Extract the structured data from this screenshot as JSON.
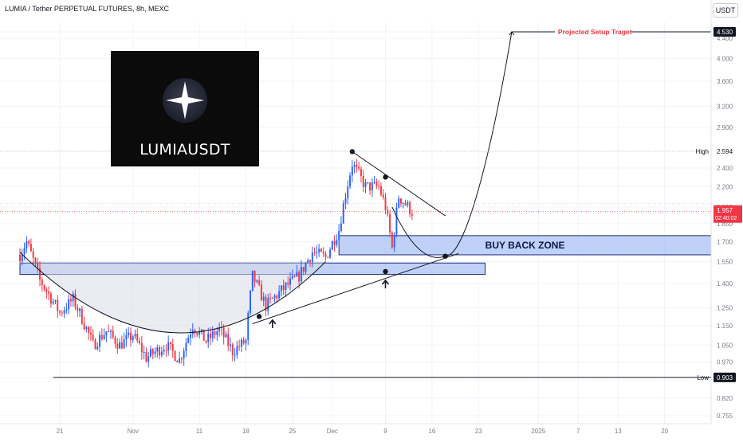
{
  "header": {
    "symbol_title": "LUMIA / Tether PERPETUAL FUTURES, 8h, MEXC",
    "currency": "USDT"
  },
  "logo": {
    "text": "LUMIAUSDT"
  },
  "colors": {
    "up": "#2962ff",
    "down": "#f23645",
    "zone_fill": "#a9c1f4",
    "zone_stroke": "#1e2a78",
    "target_text": "#f23645",
    "grid": "#f0f3fa",
    "axis_text": "#787b86"
  },
  "chart_data": {
    "type": "candlestick",
    "title": "LUMIA / Tether PERPETUAL FUTURES, 8h, MEXC",
    "y_axis": {
      "scale": "log",
      "range": [
        0.74,
        5.2
      ],
      "ticks": [
        0.755,
        0.82,
        0.902,
        0.97,
        1.05,
        1.15,
        1.25,
        1.4,
        1.55,
        1.7,
        1.85,
        2.0,
        2.2,
        2.4,
        2.594,
        2.9,
        3.2,
        3.6,
        4.0,
        4.4,
        4.53
      ]
    },
    "x_axis": {
      "range": [
        "2024-10-12",
        "2025-01-27"
      ],
      "ticks": [
        {
          "date": "2024-10-21",
          "label": "21"
        },
        {
          "date": "2024-11-01",
          "label": "Nov"
        },
        {
          "date": "2024-11-11",
          "label": "11"
        },
        {
          "date": "2024-11-18",
          "label": "18"
        },
        {
          "date": "2024-11-25",
          "label": "25"
        },
        {
          "date": "2024-12-01",
          "label": "Dec"
        },
        {
          "date": "2024-12-09",
          "label": "9"
        },
        {
          "date": "2024-12-16",
          "label": "16"
        },
        {
          "date": "2024-12-23",
          "label": "23"
        },
        {
          "date": "2025-01-01",
          "label": "2025"
        },
        {
          "date": "2025-01-07",
          "label": "7"
        },
        {
          "date": "2025-01-13",
          "label": "13"
        },
        {
          "date": "2025-01-20",
          "label": "20"
        }
      ]
    },
    "price_labels": [
      {
        "label": "High",
        "value": 2.594,
        "text": "2.594"
      },
      {
        "label": "Low",
        "value": 0.902,
        "text": "0.902"
      },
      {
        "label": "",
        "value": 0.903,
        "text": "0.903",
        "style": "dark"
      },
      {
        "label": "",
        "value": 4.53,
        "text": "4.530",
        "style": "dark"
      },
      {
        "label": "",
        "value": 1.957,
        "text": "1.957",
        "style": "red",
        "sub": "02:40:02"
      }
    ],
    "series": [
      {
        "type": "candles",
        "waypoints": [
          [
            "2024-10-15",
            1.6
          ],
          [
            "2024-10-16",
            1.7
          ],
          [
            "2024-10-18",
            1.42
          ],
          [
            "2024-10-21",
            1.22
          ],
          [
            "2024-10-23",
            1.3
          ],
          [
            "2024-10-26",
            1.05
          ],
          [
            "2024-10-28",
            1.12
          ],
          [
            "2024-10-30",
            1.05
          ],
          [
            "2024-11-01",
            1.1
          ],
          [
            "2024-11-03",
            0.99
          ],
          [
            "2024-11-06",
            1.05
          ],
          [
            "2024-11-08",
            0.98
          ],
          [
            "2024-11-10",
            1.15
          ],
          [
            "2024-11-12",
            1.07
          ],
          [
            "2024-11-14",
            1.13
          ],
          [
            "2024-11-16",
            1.02
          ],
          [
            "2024-11-18",
            1.07
          ],
          [
            "2024-11-19",
            1.45
          ],
          [
            "2024-11-21",
            1.26
          ],
          [
            "2024-11-24",
            1.38
          ],
          [
            "2024-11-26",
            1.45
          ],
          [
            "2024-11-28",
            1.62
          ],
          [
            "2024-11-30",
            1.58
          ],
          [
            "2024-12-02",
            1.8
          ],
          [
            "2024-12-04",
            2.45
          ],
          [
            "2024-12-06",
            2.2
          ],
          [
            "2024-12-08",
            2.2
          ],
          [
            "2024-12-09",
            2.0
          ],
          [
            "2024-12-10",
            1.65
          ],
          [
            "2024-12-11",
            2.1
          ],
          [
            "2024-12-13",
            1.957
          ]
        ]
      }
    ],
    "annotations": [
      {
        "type": "zone",
        "label": "BUY BACK ZONE",
        "from": "2024-12-02",
        "to": "2025-01-27",
        "low": 1.6,
        "high": 1.75
      },
      {
        "type": "zone",
        "label": "",
        "from": "2024-10-15",
        "to": "2024-12-24",
        "low": 1.46,
        "high": 1.54
      },
      {
        "type": "hline",
        "value": 0.903,
        "from": "2024-10-20",
        "to": "2025-01-27"
      },
      {
        "type": "trendline",
        "points": [
          [
            "2024-12-04",
            2.59
          ],
          [
            "2024-12-18",
            1.92
          ]
        ]
      },
      {
        "type": "trendline",
        "points": [
          [
            "2024-11-19",
            1.16
          ],
          [
            "2024-12-20",
            1.61
          ]
        ]
      },
      {
        "type": "point",
        "at": [
          "2024-11-20",
          1.2
        ]
      },
      {
        "type": "point",
        "at": [
          "2024-12-04",
          2.59
        ]
      },
      {
        "type": "point",
        "at": [
          "2024-12-09",
          2.3
        ]
      },
      {
        "type": "point",
        "at": [
          "2024-12-09",
          1.48
        ]
      },
      {
        "type": "point",
        "at": [
          "2024-12-18",
          1.59
        ]
      },
      {
        "type": "arrow",
        "at": [
          "2024-11-22",
          1.18
        ],
        "direction": "up"
      },
      {
        "type": "arrow",
        "at": [
          "2024-12-09",
          1.42
        ],
        "direction": "up"
      },
      {
        "type": "text",
        "text": "Projected Setup Traget",
        "value": 4.53
      },
      {
        "type": "curve",
        "label": "rounded bottom"
      },
      {
        "type": "projection",
        "to": [
          "2024-12-28",
          4.53
        ]
      }
    ]
  }
}
